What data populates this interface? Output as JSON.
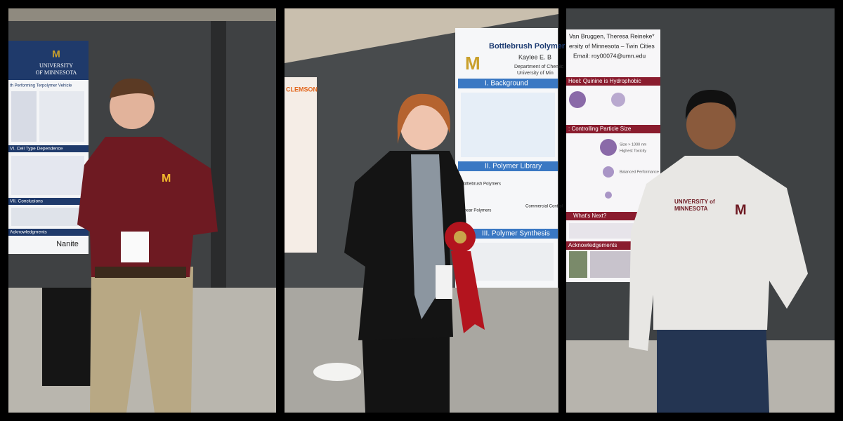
{
  "panels": [
    {
      "poster": {
        "logo": [
          "UNIVERSITY",
          "OF MINNESOTA"
        ],
        "title_fragment": "th Performing Terpolymer Vehicle",
        "sections": [
          "VI. Cell Type Dependence",
          "VII. Conclusions",
          "Acknowledgments"
        ],
        "sponsor": "Nanite"
      }
    },
    {
      "poster": {
        "title": "Bottlebrush Polymer Ex",
        "author": "Kaylee E. B",
        "affiliation": [
          "Department of Chemic",
          "University of Min"
        ],
        "sections": [
          "I. Background",
          "II. Polymer Library",
          "III. Polymer Synthesis"
        ],
        "labels": [
          "Bottlebrush Polymers",
          "Linear Polymers",
          "Commercial Control"
        ]
      },
      "side_poster": {
        "title": "CLEMSON"
      }
    },
    {
      "poster": {
        "authors": "Van Bruggen, Theresa Reineke*",
        "affiliation": "ersity of Minnesota – Twin Cities",
        "email": "Email: roy00074@umn.edu",
        "sections": [
          "Heel: Quinine is Hydrophobic",
          ": Controlling Particle Size",
          "What's Next?",
          "Acknowledgements"
        ],
        "labels": [
          "Size > 1000 nm",
          "Highest Toxicity",
          "Balanced Performance"
        ]
      },
      "sweater": [
        "UNIVERSITY of",
        "MINNESOTA"
      ]
    }
  ]
}
